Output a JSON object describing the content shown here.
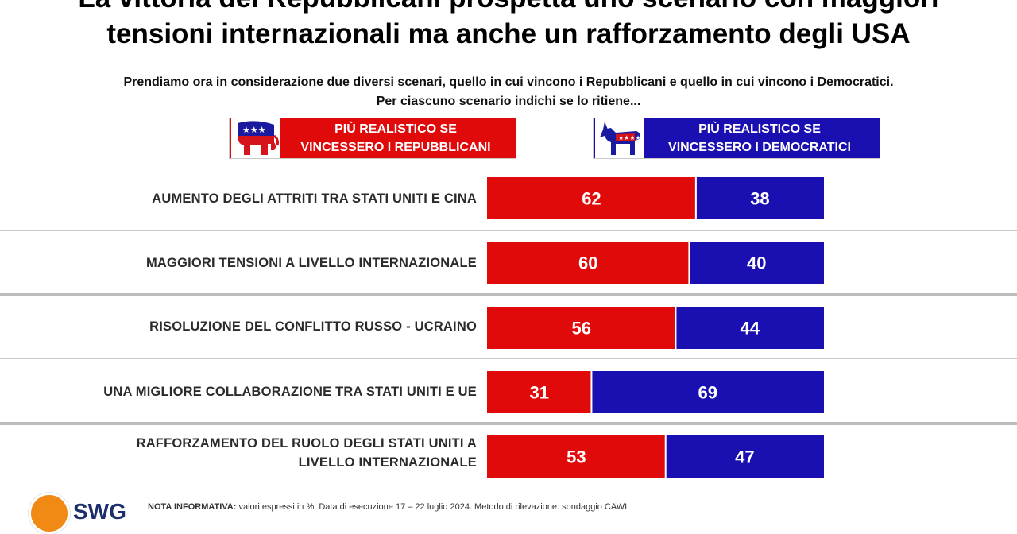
{
  "title": {
    "line1": "La vittoria dei Repubblicani prospetta uno scenario con maggiori",
    "line2": "tensioni internazionali ma anche un rafforzamento degli USA"
  },
  "subtitle": {
    "line1": "Prendiamo ora in considerazione due diversi scenari, quello in cui vincono i Repubblicani e quello in cui vincono i Democratici.",
    "line2": "Per ciascuno scenario indichi se lo ritiene..."
  },
  "legend": {
    "republican": {
      "line1": "PIÙ REALISTICO SE",
      "line2": "VINCESSERO I REPUBBLICANI",
      "icon": "republican-elephant-icon"
    },
    "democrat": {
      "line1": "PIÙ REALISTICO SE",
      "line2": "VINCESSERO I DEMOCRATICI",
      "icon": "democrat-donkey-icon"
    }
  },
  "colors": {
    "republican": "#e10a0a",
    "democrat": "#1a0fb0"
  },
  "chart_data": {
    "type": "bar",
    "orientation": "horizontal",
    "stacked": true,
    "categories": [
      "AUMENTO DEGLI ATTRITI TRA STATI UNITI E CINA",
      "MAGGIORI TENSIONI A LIVELLO INTERNAZIONALE",
      "RISOLUZIONE DEL CONFLITTO RUSSO - UCRAINO",
      "UNA MIGLIORE COLLABORAZIONE TRA STATI UNITI E UE",
      "RAFFORZAMENTO DEL RUOLO DEGLI STATI UNITI A LIVELLO INTERNAZIONALE"
    ],
    "category_lines": [
      [
        "AUMENTO DEGLI ATTRITI TRA STATI UNITI E CINA"
      ],
      [
        "MAGGIORI TENSIONI A LIVELLO INTERNAZIONALE"
      ],
      [
        "RISOLUZIONE DEL CONFLITTO RUSSO - UCRAINO"
      ],
      [
        "UNA MIGLIORE COLLABORAZIONE TRA STATI UNITI E UE"
      ],
      [
        "RAFFORZAMENTO DEL RUOLO DEGLI STATI UNITI A",
        "LIVELLO INTERNAZIONALE"
      ]
    ],
    "series": [
      {
        "name": "PIÙ REALISTICO SE VINCESSERO I REPUBBLICANI",
        "color": "#e10a0a",
        "values": [
          62,
          60,
          56,
          31,
          53
        ]
      },
      {
        "name": "PIÙ REALISTICO SE VINCESSERO I DEMOCRATICI",
        "color": "#1a0fb0",
        "values": [
          38,
          40,
          44,
          69,
          47
        ]
      }
    ],
    "xlim": [
      0,
      100
    ],
    "grid": false,
    "legend_position": "top"
  },
  "footer": {
    "brand": "SWG",
    "note_label": "NOTA INFORMATIVA:",
    "note_text": " valori espressi in %. Data di esecuzione 17 – 22 luglio 2024. Metodo di rilevazione: sondaggio CAWI"
  }
}
